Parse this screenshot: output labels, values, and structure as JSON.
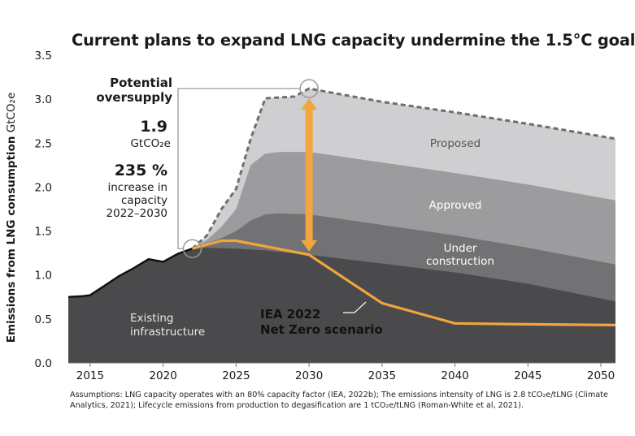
{
  "chart_data": {
    "type": "area",
    "title": "Current plans to expand LNG capacity undermine the 1.5°C goal",
    "ylabel_bold": "Emissions from LNG consumption",
    "ylabel_unit": "GtCO₂e",
    "xlim": [
      2013.5,
      2051
    ],
    "ylim": [
      0,
      3.5
    ],
    "x_ticks": [
      "2015",
      "2020",
      "2025",
      "2030",
      "2035",
      "2040",
      "2045",
      "2050"
    ],
    "y_ticks": [
      "0.0",
      "0.5",
      "1.0",
      "1.5",
      "2.0",
      "2.5",
      "3.0",
      "3.5"
    ],
    "historical": {
      "x": [
        2013.5,
        2014.5,
        2015,
        2016,
        2017,
        2018,
        2019,
        2020,
        2021,
        2022
      ],
      "y": [
        0.75,
        0.76,
        0.77,
        0.88,
        0.99,
        1.08,
        1.18,
        1.15,
        1.24,
        1.3
      ]
    },
    "series": [
      {
        "name": "Existing infrastructure",
        "color": "#4a4a4c",
        "x": [
          2013.5,
          2014.5,
          2015,
          2016,
          2017,
          2018,
          2019,
          2020,
          2021,
          2022,
          2023,
          2025,
          2027,
          2030,
          2035,
          2040,
          2045,
          2051
        ],
        "y": [
          0.75,
          0.76,
          0.77,
          0.88,
          0.99,
          1.08,
          1.18,
          1.15,
          1.24,
          1.3,
          1.31,
          1.3,
          1.28,
          1.23,
          1.13,
          1.03,
          0.9,
          0.7
        ]
      },
      {
        "name": "Under construction",
        "color": "#727274",
        "x": [
          2022,
          2023,
          2024,
          2025,
          2026,
          2027,
          2028,
          2030,
          2035,
          2040,
          2045,
          2051
        ],
        "y": [
          1.3,
          1.36,
          1.42,
          1.5,
          1.62,
          1.69,
          1.7,
          1.69,
          1.57,
          1.45,
          1.31,
          1.12
        ]
      },
      {
        "name": "Approved",
        "color": "#9c9c9e",
        "x": [
          2022,
          2023,
          2024,
          2025,
          2026,
          2027,
          2028,
          2030,
          2035,
          2040,
          2045,
          2051
        ],
        "y": [
          1.3,
          1.4,
          1.55,
          1.75,
          2.25,
          2.38,
          2.4,
          2.4,
          2.28,
          2.16,
          2.03,
          1.85
        ]
      },
      {
        "name": "Proposed",
        "color": "#cfcfd1",
        "x": [
          2022,
          2023,
          2024,
          2025,
          2026,
          2027,
          2028,
          2029,
          2030,
          2035,
          2040,
          2045,
          2051
        ],
        "y": [
          1.3,
          1.45,
          1.75,
          1.98,
          2.55,
          3.01,
          3.02,
          3.03,
          3.12,
          2.97,
          2.85,
          2.72,
          2.55
        ]
      }
    ],
    "net_zero": {
      "name": "IEA 2022 Net Zero scenario",
      "color": "#f0a53e",
      "x": [
        2022,
        2024,
        2025,
        2030,
        2035,
        2040,
        2045,
        2051
      ],
      "y": [
        1.3,
        1.39,
        1.39,
        1.23,
        0.68,
        0.45,
        0.44,
        0.43
      ]
    },
    "labels": {
      "existing": [
        "Existing",
        "infrastructure"
      ],
      "under": [
        "Under",
        "construction"
      ],
      "approved": "Approved",
      "proposed": "Proposed",
      "net_zero": [
        "IEA 2022",
        "Net Zero scenario"
      ]
    },
    "annotation": {
      "heading": [
        "Potential",
        "oversupply"
      ],
      "value": "1.9",
      "value_unit": "GtCO₂e",
      "percent": "235 %",
      "percent_text": [
        "increase in",
        "capacity",
        "2022–2030"
      ],
      "arrow_from_year": 2030,
      "arrow_from_value": 1.23,
      "arrow_to_value": 3.12
    }
  },
  "footnote": "Assumptions: LNG capacity operates with an 80% capacity factor (IEA, 2022b); The emissions intensity of LNG is 2.8 tCO₂e/tLNG (Climate Analytics, 2021); Lifecycle emissions from production to degasification are 1 tCO₂e/tLNG (Roman-White et al, 2021)."
}
